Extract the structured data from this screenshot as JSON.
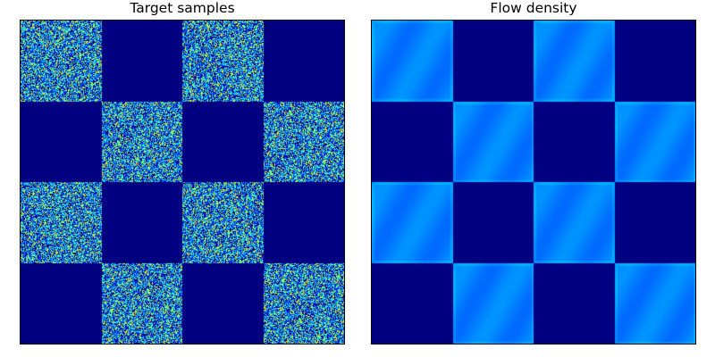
{
  "chart_data": [
    {
      "type": "heatmap",
      "title": "Target samples",
      "grid_size": [
        4,
        4
      ],
      "filled_cells": [
        [
          1,
          0,
          1,
          0
        ],
        [
          0,
          1,
          0,
          1
        ],
        [
          1,
          0,
          1,
          0
        ],
        [
          0,
          1,
          0,
          1
        ]
      ],
      "rendering": "noisy-samples",
      "colormap": "jet",
      "axes_ticks": false
    },
    {
      "type": "heatmap",
      "title": "Flow density",
      "grid_size": [
        4,
        4
      ],
      "filled_cells": [
        [
          1,
          0,
          1,
          0
        ],
        [
          0,
          1,
          0,
          1
        ],
        [
          1,
          0,
          1,
          0
        ],
        [
          0,
          1,
          0,
          1
        ]
      ],
      "rendering": "smooth-density",
      "colormap": "jet",
      "axes_ticks": false
    }
  ],
  "colors": {
    "background_low": "#00007f",
    "density_fill": "#0000f5",
    "frame": "#000000"
  }
}
